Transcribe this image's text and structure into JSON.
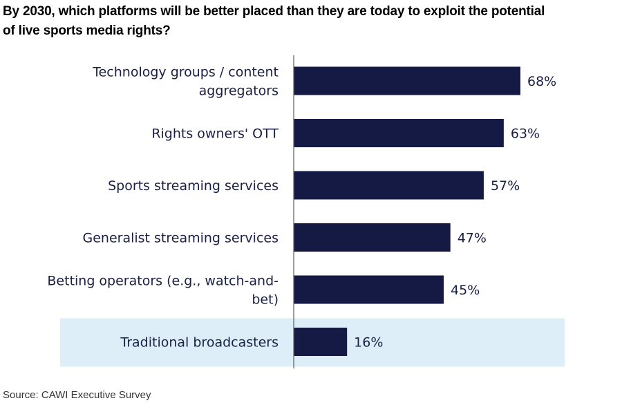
{
  "title_lines": [
    "By 2030, which platforms will be better placed than they are today to exploit the potential",
    "of live sports media rights?"
  ],
  "source": "Source: CAWI Executive Survey",
  "colors": {
    "bar": "#141a44",
    "highlight": "#ddeef9",
    "axis": "#666666",
    "text": "#1a2045"
  },
  "chart_data": {
    "type": "bar",
    "orientation": "horizontal",
    "categories": [
      [
        "Technology groups / content",
        "aggregators"
      ],
      [
        "Rights owners' OTT"
      ],
      [
        "Sports streaming services"
      ],
      [
        "Generalist streaming services"
      ],
      [
        "Betting operators (e.g., watch-and-",
        "bet)"
      ],
      [
        "Traditional broadcasters"
      ]
    ],
    "values": [
      68,
      63,
      57,
      47,
      45,
      16
    ],
    "value_labels": [
      "68%",
      "63%",
      "57%",
      "47%",
      "45%",
      "16%"
    ],
    "highlighted_category": "Traditional broadcasters",
    "xlim": [
      0,
      100
    ]
  }
}
